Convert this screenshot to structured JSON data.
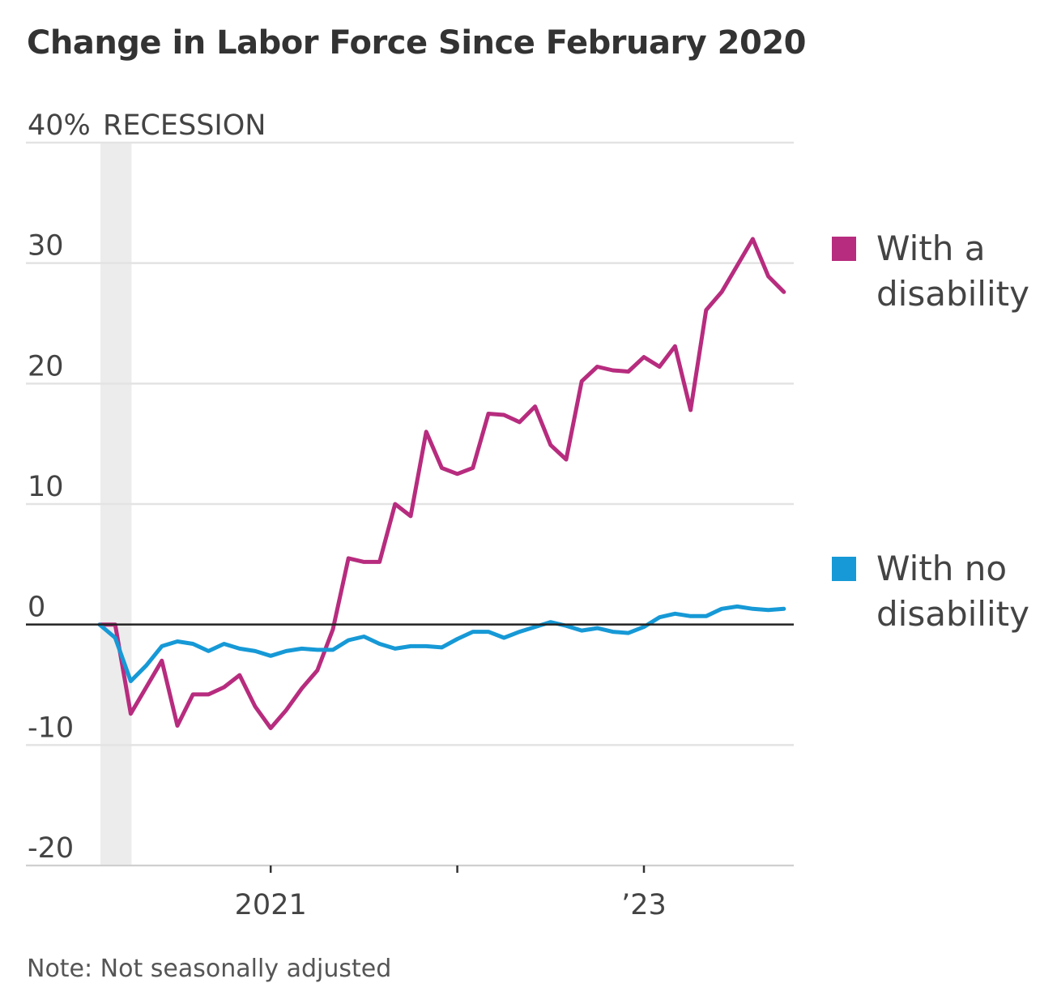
{
  "colors": {
    "disability": "#b72c7e",
    "no_disability": "#1699d6",
    "recession": "#ececec",
    "grid": "#e3e3e3",
    "zero_line": "#222222",
    "text": "#444444"
  },
  "chart_data": {
    "type": "line",
    "title": "Change in Labor Force Since February 2020",
    "xlabel": "",
    "ylabel": "",
    "ylim": [
      -20,
      40
    ],
    "yticks": [
      40,
      30,
      20,
      10,
      0,
      -10,
      -20
    ],
    "y_tick_labels": [
      "40%",
      "30",
      "20",
      "10",
      "0",
      "-10",
      "-20"
    ],
    "x_start": "2020-02",
    "x_ticks": [
      {
        "month_index": 11,
        "label": "2021"
      },
      {
        "month_index": 23,
        "label": ""
      },
      {
        "month_index": 35,
        "label": "’23"
      }
    ],
    "recession": {
      "label": "RECESSION",
      "start_index": 0,
      "end_index": 2
    },
    "series": [
      {
        "name": "With a disability",
        "legend_lines": [
          "With a",
          "disability"
        ],
        "color_key": "disability",
        "values": [
          0,
          0,
          -7.4,
          -5.2,
          -3,
          -8.4,
          -5.8,
          -5.8,
          -5.2,
          -4.2,
          -6.8,
          -8.6,
          -7.1,
          -5.3,
          -3.8,
          -0.4,
          5.5,
          5.2,
          5.2,
          10,
          9,
          16,
          13,
          12.5,
          13,
          17.5,
          17.4,
          16.8,
          18.1,
          14.9,
          13.7,
          20.2,
          21.4,
          21.1,
          21,
          22.2,
          21.4,
          23.1,
          17.8,
          26.1,
          27.6,
          29.8,
          32,
          28.9,
          27.6
        ]
      },
      {
        "name": "With no disability",
        "legend_lines": [
          "With no",
          "disability"
        ],
        "color_key": "no_disability",
        "values": [
          0,
          -1.1,
          -4.7,
          -3.4,
          -1.8,
          -1.4,
          -1.6,
          -2.2,
          -1.6,
          -2,
          -2.2,
          -2.6,
          -2.2,
          -2,
          -2.1,
          -2.1,
          -1.3,
          -1,
          -1.6,
          -2,
          -1.8,
          -1.8,
          -1.9,
          -1.2,
          -0.6,
          -0.6,
          -1.1,
          -0.6,
          -0.2,
          0.2,
          -0.1,
          -0.5,
          -0.3,
          -0.6,
          -0.7,
          -0.2,
          0.6,
          0.9,
          0.7,
          0.7,
          1.3,
          1.5,
          1.3,
          1.2,
          1.3
        ]
      }
    ]
  },
  "footnote": "Note: Not seasonally adjusted"
}
